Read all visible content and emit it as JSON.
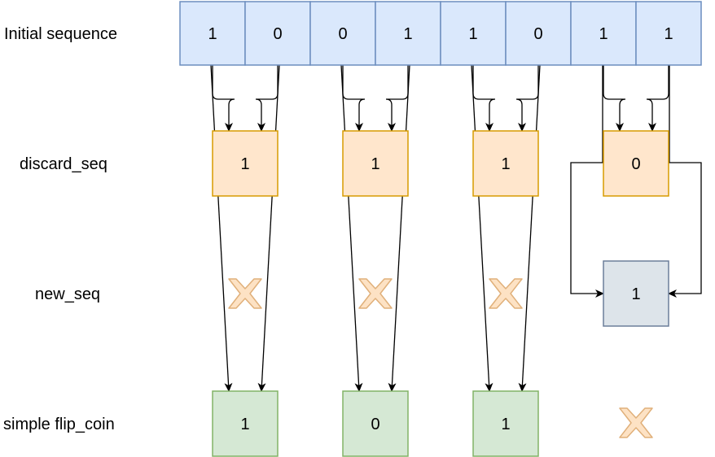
{
  "row_labels": {
    "initial": "Initial sequence",
    "discard": "discard_seq",
    "new": "new_seq",
    "flip": "simple flip_coin"
  },
  "initial_sequence": [
    "1",
    "0",
    "0",
    "1",
    "1",
    "0",
    "1",
    "1"
  ],
  "discard_seq": [
    "1",
    "1",
    "1",
    "0"
  ],
  "new_seq": [
    "",
    "",
    "",
    "1"
  ],
  "simple_flip_coin": [
    "1",
    "0",
    "1",
    ""
  ],
  "colors": {
    "initial_fill": "#dae8fc",
    "discard_fill": "#ffe6cc",
    "new_fill": "#dde4ea",
    "flip_fill": "#d5e8d4",
    "discarded_mark": "#fde2c4"
  },
  "icons": {
    "discarded": "x-mark-icon",
    "edge": "arrow-icon"
  }
}
